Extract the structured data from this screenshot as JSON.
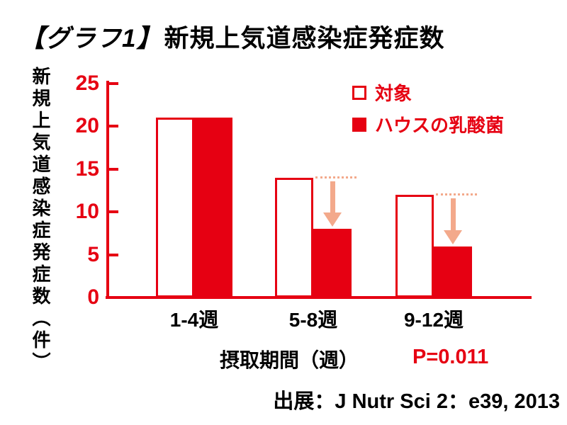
{
  "title": {
    "prefix": "【グラフ1】",
    "main": "新規上気道感染症発症数"
  },
  "annotations": {
    "p_value": "P=0.011"
  },
  "source": "出展：J Nutr Sci 2：e39, 2013",
  "colors": {
    "red": "#E60012",
    "arrow_salmon": "#F3A98B",
    "text_black": "#000000",
    "background": "#FFFFFF"
  },
  "chart_data": {
    "type": "bar",
    "title": "【グラフ1】新規上気道感染症発症数",
    "categories": [
      "1-4週",
      "5-8週",
      "9-12週"
    ],
    "series": [
      {
        "name": "対象",
        "values": [
          21,
          14,
          12
        ],
        "fill": "#FFFFFF",
        "border": "#E60012"
      },
      {
        "name": "ハウスの乳酸菌",
        "values": [
          21,
          8,
          6
        ],
        "fill": "#E60012"
      }
    ],
    "xlabel": "摂取期間（週）",
    "ylabel": "新規上気道感染症発症数（件）",
    "ylim": [
      0,
      25
    ],
    "yticks": [
      0,
      5,
      10,
      15,
      20,
      25
    ],
    "grid": false,
    "legend_position": "top-right",
    "annotations": [
      "P=0.011"
    ]
  }
}
